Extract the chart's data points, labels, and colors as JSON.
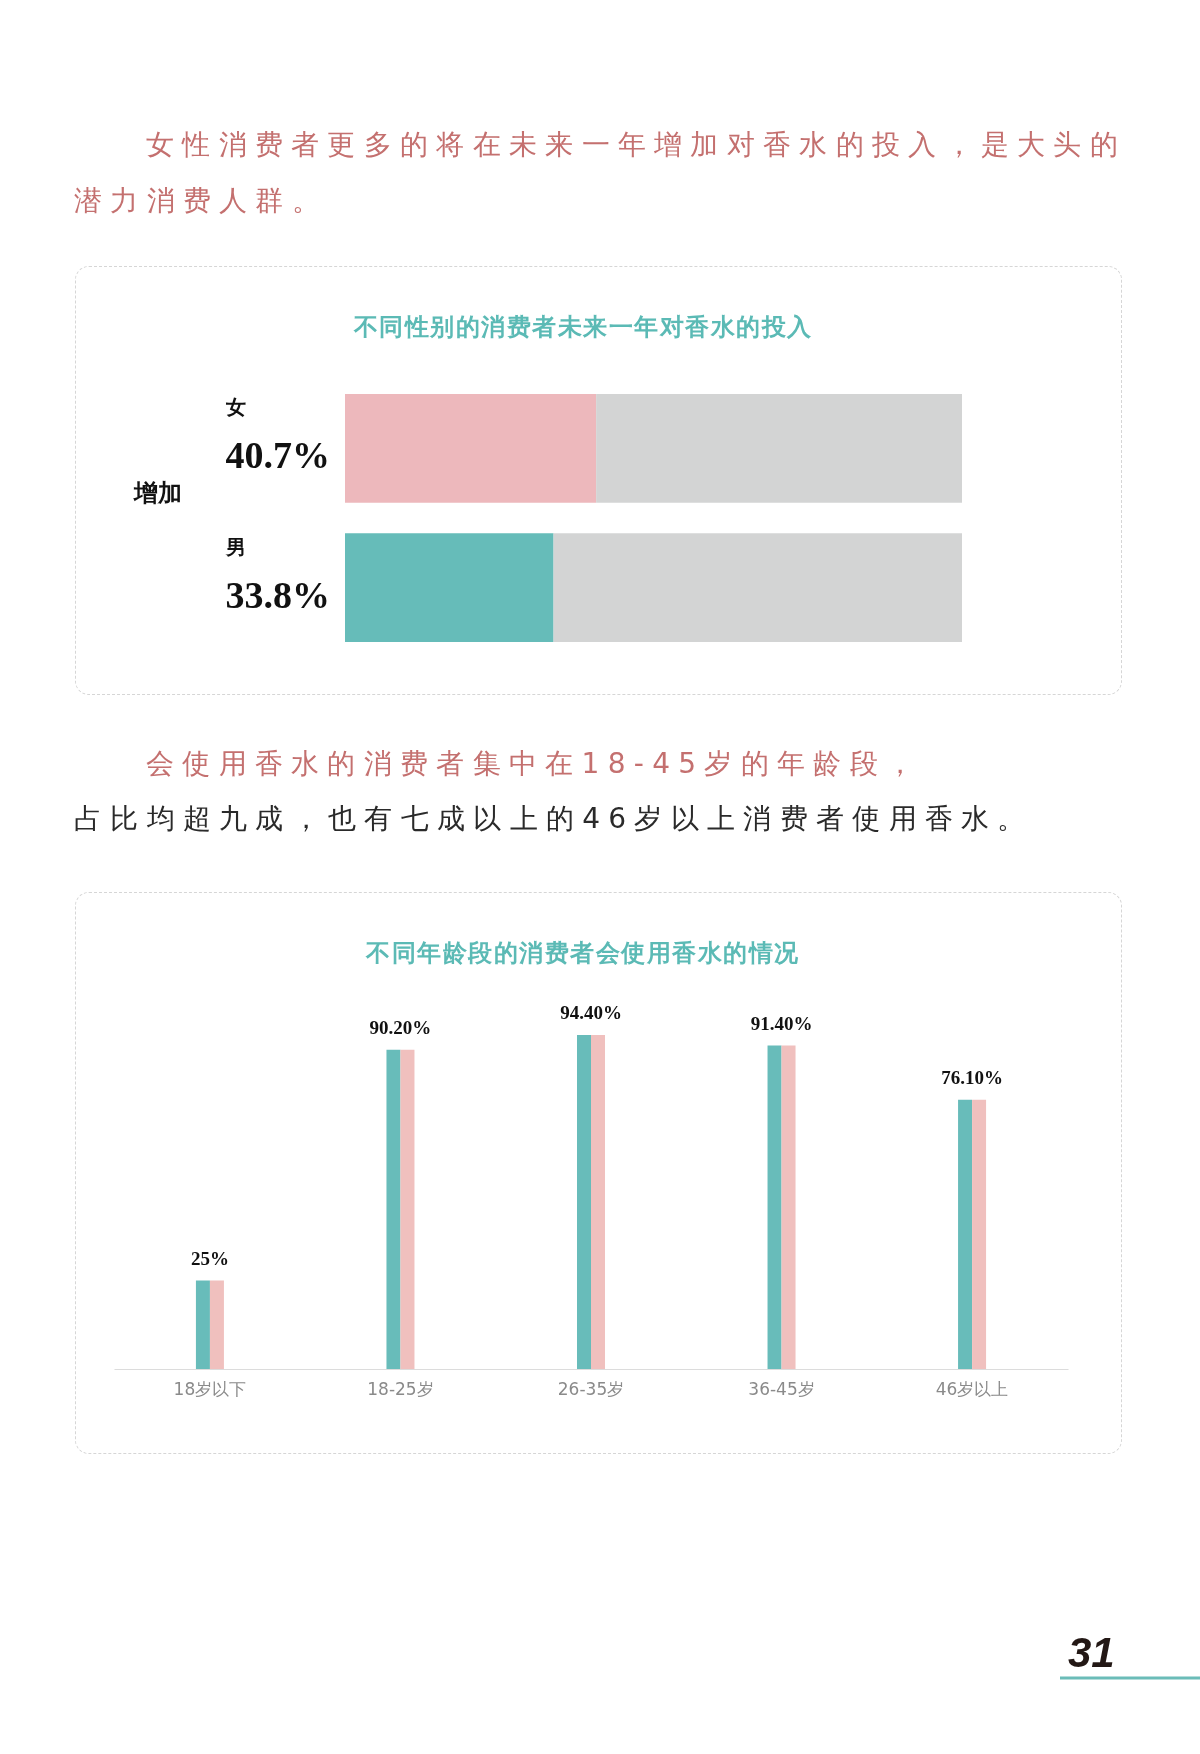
{
  "chart_data": [
    {
      "type": "bar",
      "orientation": "horizontal",
      "stacked": true,
      "title": "不同性别的消费者未来一年对香水的投入",
      "annotations": [
        "女性消费者更多的将在未来一年增加对香水的投入，是大头的潜力消费人群。"
      ],
      "ylabel": "增加",
      "categories": [
        "女",
        "男"
      ],
      "series": [
        {
          "colors": [
            "#edb8bc",
            "#66bcb9"
          ],
          "values": [
            40.7,
            33.8
          ],
          "value_labels": [
            "40.7%",
            "33.8%"
          ]
        },
        {
          "color": "#d3d4d4",
          "values": [
            59.3,
            66.2
          ]
        }
      ],
      "tick_labels": "y"
    },
    {
      "type": "bar",
      "title": "不同年龄段的消费者会使用香水的情况",
      "annotations": [
        "会使用香水的消费者集中在18-45岁的年龄段，",
        "占比均超九成，也有七成以上的46岁以上消费者使用香水。",
        "31"
      ],
      "categories": [
        "18岁以下",
        "18-25岁",
        "26-35岁",
        "36-45岁",
        "46岁以上"
      ],
      "series": [
        {
          "color": "#68bcba",
          "values": [
            25,
            90.2,
            94.4,
            91.4,
            76.1
          ],
          "value_labels": [
            "25%",
            "90.20%",
            "94.40%",
            "91.40%",
            "76.10%"
          ]
        },
        {
          "color": "#f0c0be",
          "values": [
            25,
            90.2,
            94.4,
            91.4,
            76.1
          ]
        }
      ],
      "tick_labels": "x"
    }
  ]
}
